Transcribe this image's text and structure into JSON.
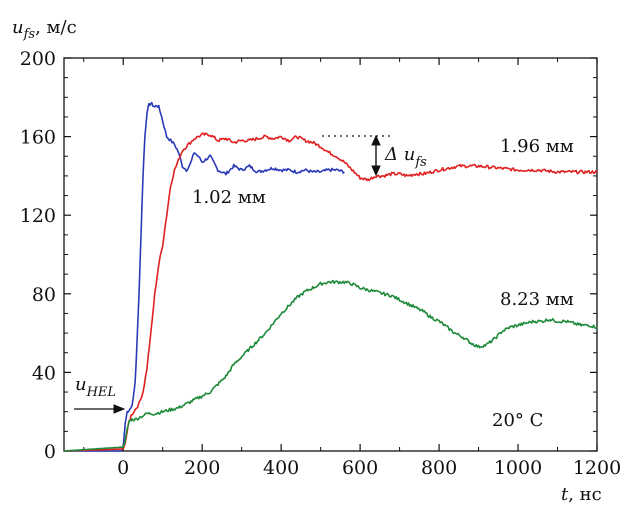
{
  "chart_data": {
    "type": "line",
    "xlabel_var": "t",
    "xlabel_unit": ", нс",
    "ylabel_var": "u",
    "ylabel_sub": "fs",
    "ylabel_unit": ", м/с",
    "xlim": [
      -150,
      1200
    ],
    "ylim": [
      0,
      200
    ],
    "x_ticks": [
      0,
      200,
      400,
      600,
      800,
      1000,
      1200
    ],
    "y_ticks": [
      0,
      40,
      80,
      120,
      160,
      200
    ],
    "grid": false,
    "series": [
      {
        "name": "1.02 мм",
        "color": "#2b3ab8",
        "x": [
          -150,
          -5,
          0,
          5,
          10,
          15,
          20,
          25,
          30,
          35,
          40,
          45,
          50,
          55,
          60,
          65,
          70,
          75,
          80,
          85,
          90,
          95,
          100,
          110,
          120,
          130,
          140,
          150,
          160,
          170,
          180,
          190,
          200,
          220,
          240,
          260,
          280,
          300,
          320,
          340,
          360,
          380,
          400,
          420,
          440,
          460,
          480,
          500,
          520,
          540,
          560
        ],
        "y": [
          0,
          0,
          2,
          14,
          20,
          21,
          22,
          26,
          35,
          55,
          80,
          110,
          140,
          160,
          172,
          176,
          177,
          176,
          175,
          176,
          175,
          172,
          168,
          160,
          158,
          156,
          152,
          145,
          143,
          146,
          152,
          150,
          147,
          150,
          143,
          141,
          145,
          143,
          145,
          142,
          143,
          144,
          143,
          143,
          142,
          143,
          142,
          142,
          143,
          143,
          142
        ]
      },
      {
        "name": "1.96 мм",
        "color": "#e02020",
        "x": [
          -150,
          0,
          5,
          10,
          15,
          20,
          30,
          40,
          50,
          60,
          70,
          80,
          90,
          100,
          110,
          120,
          130,
          140,
          150,
          160,
          170,
          180,
          190,
          200,
          220,
          240,
          260,
          280,
          300,
          320,
          340,
          360,
          380,
          400,
          420,
          440,
          460,
          480,
          500,
          520,
          540,
          560,
          580,
          600,
          620,
          640,
          660,
          680,
          700,
          720,
          740,
          760,
          780,
          800,
          850,
          900,
          950,
          1000,
          1050,
          1100,
          1150,
          1200
        ],
        "y": [
          0,
          1,
          4,
          10,
          15,
          18,
          21,
          24,
          30,
          42,
          60,
          80,
          95,
          105,
          120,
          135,
          143,
          148,
          153,
          155,
          157,
          159,
          160,
          161,
          161,
          158,
          159,
          157,
          158,
          158,
          159,
          160,
          159,
          160,
          158,
          160,
          158,
          157,
          155,
          152,
          150,
          147,
          143,
          139,
          138,
          140,
          140,
          141,
          141,
          140,
          141,
          141,
          142,
          143,
          145,
          145,
          144,
          143,
          143,
          142,
          142,
          142
        ]
      },
      {
        "name": "8.23 мм",
        "color": "#1e8a3a",
        "x": [
          -150,
          0,
          5,
          10,
          15,
          20,
          25,
          30,
          40,
          50,
          60,
          80,
          100,
          120,
          140,
          160,
          180,
          200,
          220,
          240,
          260,
          280,
          300,
          320,
          340,
          360,
          380,
          400,
          420,
          440,
          460,
          480,
          500,
          520,
          540,
          560,
          580,
          600,
          620,
          640,
          660,
          680,
          700,
          720,
          740,
          760,
          780,
          800,
          820,
          840,
          860,
          880,
          900,
          920,
          940,
          960,
          980,
          1000,
          1020,
          1040,
          1060,
          1080,
          1100,
          1120,
          1140,
          1160,
          1180,
          1200
        ],
        "y": [
          0,
          2,
          5,
          11,
          15,
          16,
          16,
          16,
          17,
          18,
          19,
          19,
          20,
          21,
          22,
          24,
          26,
          28,
          30,
          34,
          38,
          44,
          48,
          52,
          56,
          60,
          65,
          70,
          74,
          78,
          81,
          83,
          85,
          86,
          86,
          86,
          85,
          83,
          82,
          81,
          80,
          79,
          77,
          75,
          73,
          71,
          68,
          66,
          63,
          60,
          58,
          55,
          53,
          54,
          57,
          61,
          63,
          64,
          65,
          66,
          66,
          67,
          66,
          66,
          65,
          64,
          64,
          63
        ]
      }
    ],
    "annotations": {
      "label_102": "1.02 мм",
      "label_196": "1.96 мм",
      "label_823": "8.23 мм",
      "temperature": "20° C",
      "delta_var": "Δ u",
      "delta_sub": "fs",
      "hel_var": "u",
      "hel_sub": "HEL"
    }
  }
}
